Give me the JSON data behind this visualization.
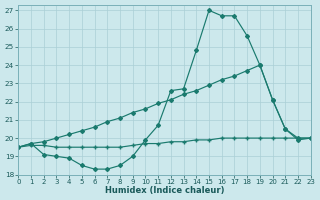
{
  "xlabel": "Humidex (Indice chaleur)",
  "bg_color": "#cce8ec",
  "line_color": "#1a7a6e",
  "grid_color": "#aacfd6",
  "xlim": [
    0,
    23
  ],
  "ylim": [
    18,
    27.3
  ],
  "xticks": [
    0,
    1,
    2,
    3,
    4,
    5,
    6,
    7,
    8,
    9,
    10,
    11,
    12,
    13,
    14,
    15,
    16,
    17,
    18,
    19,
    20,
    21,
    22,
    23
  ],
  "yticks": [
    18,
    19,
    20,
    21,
    22,
    23,
    24,
    25,
    26,
    27
  ],
  "line1_x": [
    0,
    1,
    2,
    3,
    4,
    5,
    6,
    7,
    8,
    9,
    10,
    11,
    12,
    13,
    14,
    15,
    16,
    17,
    18,
    19,
    20,
    21,
    22,
    23
  ],
  "line1_y": [
    19.5,
    19.7,
    19.1,
    19.0,
    18.9,
    18.5,
    18.3,
    18.3,
    18.5,
    19.0,
    19.9,
    20.7,
    22.6,
    22.7,
    24.8,
    27.0,
    26.7,
    26.7,
    25.6,
    24.0,
    22.1,
    20.5,
    19.9,
    20.0
  ],
  "line2_x": [
    0,
    1,
    2,
    3,
    4,
    5,
    6,
    7,
    8,
    9,
    10,
    11,
    12,
    13,
    14,
    15,
    16,
    17,
    18,
    19,
    20,
    21,
    22,
    23
  ],
  "line2_y": [
    19.5,
    19.6,
    19.6,
    19.5,
    19.5,
    19.5,
    19.5,
    19.5,
    19.5,
    19.6,
    19.7,
    19.7,
    19.8,
    19.8,
    19.9,
    19.9,
    20.0,
    20.0,
    20.0,
    20.0,
    20.0,
    20.0,
    20.0,
    20.0
  ],
  "line3_x": [
    0,
    1,
    2,
    3,
    4,
    5,
    6,
    7,
    8,
    9,
    10,
    11,
    12,
    13,
    14,
    15,
    16,
    17,
    18,
    19,
    20,
    21,
    22,
    23
  ],
  "line3_y": [
    19.5,
    19.7,
    19.8,
    20.0,
    20.2,
    20.4,
    20.6,
    20.9,
    21.1,
    21.4,
    21.6,
    21.9,
    22.1,
    22.4,
    22.6,
    22.9,
    23.2,
    23.4,
    23.7,
    24.0,
    22.1,
    20.5,
    20.0,
    20.0
  ]
}
